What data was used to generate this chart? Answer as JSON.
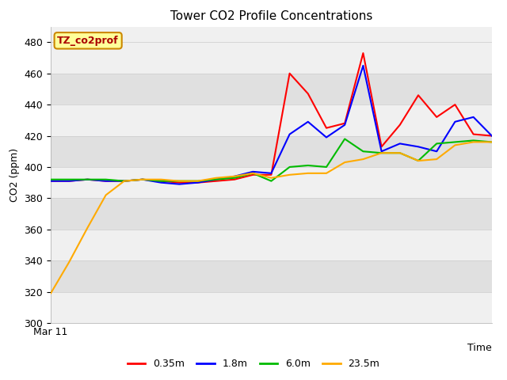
{
  "title": "Tower CO2 Profile Concentrations",
  "xlabel": "Time",
  "ylabel": "CO2 (ppm)",
  "ylim": [
    300,
    490
  ],
  "yticks": [
    300,
    320,
    340,
    360,
    380,
    400,
    420,
    440,
    460,
    480
  ],
  "x_label_start": "Mar 11",
  "legend_label": "TZ_co2prof",
  "band_color_light": "#f0f0f0",
  "band_color_dark": "#e0e0e0",
  "series": {
    "0.35m": {
      "color": "#ff0000",
      "x": [
        0,
        1,
        2,
        3,
        4,
        5,
        6,
        7,
        8,
        9,
        10,
        11,
        12,
        13,
        14,
        15,
        16,
        17,
        18,
        19,
        20,
        21,
        22,
        23,
        24
      ],
      "y": [
        391,
        391,
        392,
        391,
        391,
        392,
        391,
        390,
        390,
        391,
        392,
        395,
        395,
        460,
        447,
        425,
        428,
        473,
        413,
        427,
        446,
        432,
        440,
        421,
        420
      ]
    },
    "1.8m": {
      "color": "#0000ff",
      "x": [
        0,
        1,
        2,
        3,
        4,
        5,
        6,
        7,
        8,
        9,
        10,
        11,
        12,
        13,
        14,
        15,
        16,
        17,
        18,
        19,
        20,
        21,
        22,
        23,
        24
      ],
      "y": [
        391,
        391,
        392,
        391,
        391,
        392,
        390,
        389,
        390,
        392,
        394,
        397,
        396,
        421,
        429,
        419,
        427,
        465,
        410,
        415,
        413,
        410,
        429,
        432,
        420
      ]
    },
    "6.0m": {
      "color": "#00bb00",
      "x": [
        0,
        1,
        2,
        3,
        4,
        5,
        6,
        7,
        8,
        9,
        10,
        11,
        12,
        13,
        14,
        15,
        16,
        17,
        18,
        19,
        20,
        21,
        22,
        23,
        24
      ],
      "y": [
        392,
        392,
        392,
        392,
        391,
        392,
        391,
        391,
        391,
        392,
        393,
        396,
        391,
        400,
        401,
        400,
        418,
        410,
        409,
        409,
        404,
        415,
        416,
        417,
        416
      ]
    },
    "23.5m": {
      "color": "#ffaa00",
      "x": [
        0,
        1,
        2,
        3,
        4,
        5,
        6,
        7,
        8,
        9,
        10,
        11,
        12,
        13,
        14,
        15,
        16,
        17,
        18,
        19,
        20,
        21,
        22,
        23,
        24
      ],
      "y": [
        319,
        339,
        361,
        382,
        391,
        392,
        392,
        391,
        391,
        393,
        394,
        396,
        393,
        395,
        396,
        396,
        403,
        405,
        409,
        409,
        404,
        405,
        414,
        416,
        416
      ]
    }
  }
}
